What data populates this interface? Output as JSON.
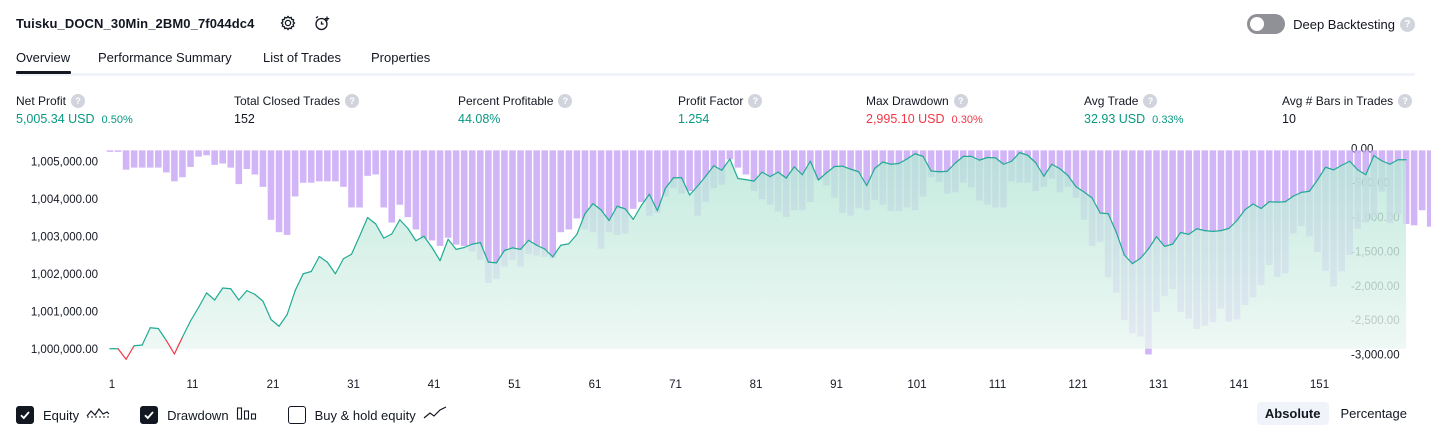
{
  "header": {
    "strategy_name": "Tuisku_DOCN_30Min_2BM0_7f044dc4",
    "settings_icon": "gear-icon",
    "alert_icon": "add-alarm-icon",
    "deep_backtesting_label": "Deep Backtesting",
    "deep_backtesting_on": false,
    "help_glyph": "?"
  },
  "tabs": [
    {
      "label": "Overview",
      "active": true
    },
    {
      "label": "Performance Summary",
      "active": false
    },
    {
      "label": "List of Trades",
      "active": false
    },
    {
      "label": "Properties",
      "active": false
    }
  ],
  "metrics": [
    {
      "label": "Net Profit",
      "value": "5,005.34 USD",
      "pct": "0.50%",
      "tone": "pos"
    },
    {
      "label": "Total Closed Trades",
      "value": "152",
      "pct": "",
      "tone": "neutral"
    },
    {
      "label": "Percent Profitable",
      "value": "44.08%",
      "pct": "",
      "tone": "pos"
    },
    {
      "label": "Profit Factor",
      "value": "1.254",
      "pct": "",
      "tone": "pos"
    },
    {
      "label": "Max Drawdown",
      "value": "2,995.10 USD",
      "pct": "0.30%",
      "tone": "neg"
    },
    {
      "label": "Avg Trade",
      "value": "32.93 USD",
      "pct": "0.33%",
      "tone": "pos"
    },
    {
      "label": "Avg # Bars in Trades",
      "value": "10",
      "pct": "",
      "tone": "neutral"
    }
  ],
  "colors": {
    "equity_line": "#22ab94",
    "equity_negative": "#f23645",
    "equity_fill_top": "#b5e6d6",
    "equity_fill_bottom": "#eaf6f2",
    "drawdown_bar": "#c9a8f6",
    "text_positive": "#089981",
    "text_negative": "#f23645"
  },
  "chart_data": {
    "type": "bar+area",
    "left_axis": {
      "ticks": [
        "1,005,000.00",
        "1,004,000.00",
        "1,003,000.00",
        "1,002,000.00",
        "1,001,000.00",
        "1,000,000.00"
      ],
      "range": [
        999700,
        1005380
      ]
    },
    "right_axis": {
      "ticks": [
        "0.00",
        "-500.00",
        "-1,000.00",
        "-1,500.00",
        "-2,000.00",
        "-2,500.00",
        "-3,000.00"
      ],
      "range": [
        -3080,
        20
      ]
    },
    "x_ticks": [
      "1",
      "11",
      "21",
      "31",
      "41",
      "51",
      "61",
      "71",
      "81",
      "91",
      "101",
      "111",
      "121",
      "131",
      "141",
      "151"
    ],
    "baseline_equity": 1000000,
    "series": [
      {
        "name": "Equity",
        "type": "area",
        "values": [
          1000000,
          1000000,
          999720,
          1000080,
          1000100,
          1000560,
          1000540,
          1000220,
          999860,
          1000310,
          1000740,
          1001100,
          1001490,
          1001300,
          1001620,
          1001600,
          1001300,
          1001550,
          1001450,
          1001270,
          1000780,
          1000600,
          1000910,
          1001550,
          1002000,
          1002060,
          1002460,
          1002310,
          1002000,
          1002400,
          1002520,
          1003000,
          1003500,
          1003330,
          1002950,
          1003060,
          1003440,
          1003210,
          1002880,
          1003000,
          1002700,
          1002350,
          1002920,
          1002650,
          1002700,
          1002790,
          1002830,
          1002310,
          1002290,
          1002620,
          1002690,
          1002650,
          1002890,
          1002760,
          1002660,
          1002450,
          1002760,
          1002800,
          1003050,
          1003600,
          1003870,
          1003700,
          1003420,
          1003800,
          1003730,
          1003450,
          1003820,
          1004120,
          1003680,
          1004280,
          1004560,
          1004560,
          1004100,
          1004340,
          1004600,
          1004880,
          1004760,
          1005060,
          1004540,
          1004510,
          1004470,
          1004710,
          1004590,
          1004710,
          1004550,
          1004850,
          1004640,
          1005000,
          1004500,
          1004690,
          1004860,
          1004870,
          1004790,
          1004720,
          1004350,
          1004810,
          1004980,
          1004920,
          1004940,
          1005060,
          1005200,
          1005130,
          1004740,
          1004720,
          1004730,
          1004950,
          1005130,
          1005130,
          1005030,
          1005100,
          1005090,
          1004920,
          1005000,
          1005230,
          1005160,
          1004960,
          1004600,
          1004920,
          1004800,
          1004620,
          1004320,
          1004180,
          1004020,
          1003620,
          1003600,
          1003110,
          1002500,
          1002270,
          1002410,
          1002660,
          1002990,
          1002730,
          1002790,
          1003100,
          1003050,
          1003200,
          1003150,
          1003130,
          1003150,
          1003210,
          1003420,
          1003710,
          1003860,
          1003740,
          1003920,
          1003910,
          1003920,
          1004070,
          1004170,
          1004200,
          1004500,
          1004840,
          1004770,
          1004890,
          1005000,
          1004770,
          1004640,
          1005150,
          1005010,
          1004920,
          1005040,
          1005040
        ]
      },
      {
        "name": "Drawdown",
        "type": "bar",
        "values": [
          -30,
          -30,
          -310,
          -280,
          -280,
          -280,
          -280,
          -350,
          -480,
          -420,
          -270,
          -120,
          -100,
          -240,
          -220,
          -280,
          -520,
          -300,
          -380,
          -560,
          -1040,
          -1220,
          -1260,
          -700,
          -500,
          -500,
          -480,
          -480,
          -480,
          -560,
          -860,
          -860,
          -400,
          -380,
          -860,
          -1080,
          -820,
          -1000,
          -1180,
          -1320,
          -1340,
          -1420,
          -1300,
          -1400,
          -1420,
          -1500,
          -1620,
          -1960,
          -1900,
          -1720,
          -1620,
          -1720,
          -1540,
          -1560,
          -1580,
          -1600,
          -1220,
          -1180,
          -1020,
          -1180,
          -1220,
          -1460,
          -1220,
          -1260,
          -1240,
          -880,
          -780,
          -980,
          -940,
          -700,
          -580,
          -660,
          -620,
          -980,
          -780,
          -580,
          -530,
          -160,
          -280,
          -380,
          -620,
          -740,
          -820,
          -920,
          -1000,
          -900,
          -900,
          -780,
          -460,
          -540,
          -720,
          -940,
          -980,
          -870,
          -900,
          -750,
          -820,
          -910,
          -910,
          -860,
          -900,
          -700,
          -420,
          -490,
          -660,
          -640,
          -500,
          -570,
          -760,
          -820,
          -860,
          -860,
          -480,
          -500,
          -500,
          -620,
          -560,
          -440,
          -640,
          -560,
          -720,
          -1040,
          -1420,
          -1360,
          -1880,
          -2100,
          -2500,
          -2690,
          -2740,
          -3000,
          -2380,
          -2150,
          -2050,
          -2380,
          -2480,
          -2630,
          -2580,
          -2530,
          -2330,
          -2520,
          -2490,
          -2280,
          -2170,
          -1990,
          -1700,
          -1870,
          -1820,
          -1240,
          -1130,
          -1280,
          -1510,
          -1780,
          -2010,
          -1790,
          -1550,
          -1170,
          -1080,
          -1000,
          -630,
          -1090,
          -960,
          -1100,
          -1120,
          -900,
          -1140
        ]
      }
    ]
  },
  "legend": [
    {
      "label": "Equity",
      "checked": true,
      "icon": "equity-wave-icon"
    },
    {
      "label": "Drawdown",
      "checked": true,
      "icon": "drawdown-bars-icon"
    },
    {
      "label": "Buy & hold equity",
      "checked": false,
      "icon": "buy-hold-line-icon"
    }
  ],
  "view_mode": {
    "options": [
      "Absolute",
      "Percentage"
    ],
    "selected": "Absolute"
  }
}
